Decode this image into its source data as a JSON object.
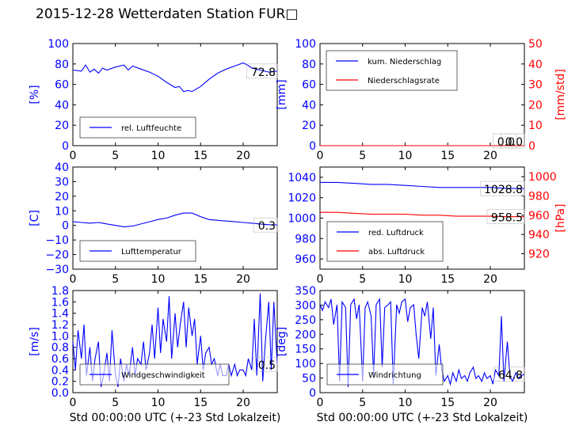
{
  "title": "2015-12-28 Wetterdaten Station FUR□",
  "colors": {
    "primary": "#0000ff",
    "secondary": "#ff0000",
    "axis": "#000000"
  },
  "chart_data": [
    {
      "id": "humidity",
      "type": "line",
      "xlim": [
        0,
        24
      ],
      "xticks": [
        "0",
        "5",
        "10",
        "15",
        "20"
      ],
      "ylim": [
        0,
        100
      ],
      "yticks": [
        "0",
        "20",
        "40",
        "60",
        "80",
        "100"
      ],
      "ylabel": "[%]",
      "xlabel": "",
      "value_label": "72.8",
      "legend": [
        "rel. Luftfeuchte"
      ],
      "legend_position": "lower-left",
      "series": [
        {
          "name": "rel. Luftfeuchte",
          "color": "#0000ff",
          "x": [
            0,
            1,
            1.5,
            2,
            2.5,
            3,
            3.5,
            4,
            5,
            6,
            6.5,
            7,
            8,
            9,
            10,
            11,
            12,
            12.5,
            13,
            13.5,
            14,
            15,
            16,
            17,
            18,
            19,
            20,
            20.5,
            21,
            22,
            23,
            24
          ],
          "y": [
            74,
            73,
            79,
            72,
            75,
            71,
            76,
            74,
            77,
            79,
            74,
            78,
            75,
            72,
            68,
            62,
            57,
            58,
            53,
            54,
            53,
            58,
            65,
            71,
            75,
            78,
            81,
            79,
            76,
            74,
            72,
            73
          ]
        }
      ]
    },
    {
      "id": "precipitation",
      "type": "line",
      "xlim": [
        0,
        24
      ],
      "xticks": [
        "0",
        "5",
        "10",
        "15",
        "20"
      ],
      "ylim": [
        0,
        100
      ],
      "yticks": [
        "0",
        "20",
        "40",
        "60",
        "80",
        "100"
      ],
      "ylabel": "[mm]",
      "xlabel": "",
      "ylim_right": [
        0,
        50
      ],
      "yticks_right": [
        "0",
        "10",
        "20",
        "30",
        "40",
        "50"
      ],
      "ylabel_right": "[mm/std]",
      "value_labels": [
        "0.0",
        "0.0"
      ],
      "legend": [
        "kum. Niederschlag",
        "Niederschlagsrate"
      ],
      "legend_position": "upper-left",
      "series": [
        {
          "name": "kum. Niederschlag",
          "color": "#0000ff",
          "axis": "left",
          "x": [
            0,
            24
          ],
          "y": [
            0,
            0
          ]
        },
        {
          "name": "Niederschlagsrate",
          "color": "#ff0000",
          "axis": "right",
          "x": [
            0,
            24
          ],
          "y": [
            0,
            0
          ]
        }
      ]
    },
    {
      "id": "temperature",
      "type": "line",
      "xlim": [
        0,
        24
      ],
      "xticks": [
        "0",
        "5",
        "10",
        "15",
        "20"
      ],
      "ylim": [
        -30,
        40
      ],
      "yticks": [
        "−30",
        "−20",
        "−10",
        "0",
        "10",
        "20",
        "30",
        "40"
      ],
      "ylabel": "[C]",
      "xlabel": "",
      "value_label": "0.3",
      "legend": [
        "Lufttemperatur"
      ],
      "legend_position": "lower-left",
      "series": [
        {
          "name": "Lufttemperatur",
          "color": "#0000ff",
          "x": [
            0,
            1,
            2,
            3,
            4,
            5,
            6,
            7,
            8,
            9,
            10,
            11,
            12,
            13,
            14,
            15,
            16,
            17,
            18,
            19,
            20,
            21,
            22,
            23,
            24
          ],
          "y": [
            2.5,
            2,
            1.5,
            2,
            1,
            0,
            -1,
            -0.5,
            1,
            2.5,
            4,
            5,
            7,
            8.5,
            8.5,
            6,
            4,
            3.5,
            3,
            2.5,
            2,
            1.5,
            1,
            0.5,
            0.3
          ]
        }
      ]
    },
    {
      "id": "pressure",
      "type": "line",
      "xlim": [
        0,
        24
      ],
      "xticks": [
        "0",
        "5",
        "10",
        "15",
        "20"
      ],
      "ylim": [
        950,
        1050
      ],
      "yticks": [
        "960",
        "980",
        "1000",
        "1020",
        "1040"
      ],
      "ylabel": "",
      "xlabel": "",
      "ylim_right": [
        904,
        1010
      ],
      "yticks_right": [
        "920",
        "940",
        "960",
        "980",
        "1000"
      ],
      "ylabel_right": "[hPa]",
      "value_labels": [
        "1028.8",
        "958.5"
      ],
      "legend": [
        "red. Luftdruck",
        "abs. Luftdruck"
      ],
      "legend_position": "lower-left",
      "series": [
        {
          "name": "red. Luftdruck",
          "color": "#0000ff",
          "axis": "left",
          "x": [
            0,
            2,
            4,
            6,
            8,
            10,
            12,
            14,
            16,
            18,
            20,
            22,
            24
          ],
          "y": [
            1035,
            1035,
            1034,
            1033,
            1033,
            1032,
            1031,
            1030,
            1030,
            1030,
            1030,
            1029,
            1029
          ]
        },
        {
          "name": "abs. Luftdruck",
          "color": "#ff0000",
          "axis": "right",
          "x": [
            0,
            2,
            4,
            6,
            8,
            10,
            12,
            14,
            16,
            18,
            20,
            22,
            24
          ],
          "y": [
            963,
            963,
            962,
            961,
            961,
            961,
            960,
            960,
            959,
            959,
            959,
            958.5,
            958.5
          ]
        }
      ]
    },
    {
      "id": "windspeed",
      "type": "line",
      "xlim": [
        0,
        24
      ],
      "xticks": [
        "0",
        "5",
        "10",
        "15",
        "20"
      ],
      "ylim": [
        0,
        1.8
      ],
      "yticks": [
        "0.0",
        "0.2",
        "0.4",
        "0.6",
        "0.8",
        "1.0",
        "1.2",
        "1.4",
        "1.6",
        "1.8"
      ],
      "ylabel": "[m/s]",
      "xlabel": "Std 00:00:00 UTC (+-23 Std Lokalzeit)",
      "value_label": "0.5",
      "legend": [
        "Windgeschwindigkeit"
      ],
      "legend_position": "lower-center",
      "series": [
        {
          "name": "Windgeschwindigkeit",
          "color": "#0000ff",
          "x": [
            0,
            0.3,
            0.6,
            1,
            1.3,
            1.6,
            2,
            2.3,
            2.6,
            3,
            3.3,
            3.6,
            4,
            4.3,
            4.6,
            5,
            5.3,
            5.6,
            6,
            6.3,
            6.6,
            7,
            7.3,
            7.6,
            8,
            8.3,
            8.6,
            9,
            9.3,
            9.6,
            10,
            10.3,
            10.6,
            11,
            11.3,
            11.6,
            12,
            12.3,
            12.6,
            13,
            13.3,
            13.6,
            14,
            14.3,
            14.6,
            15,
            15.3,
            15.6,
            16,
            16.3,
            16.6,
            17,
            17.3,
            17.6,
            18,
            18.3,
            18.6,
            19,
            19.3,
            19.6,
            20,
            20.3,
            20.6,
            21,
            21.3,
            21.6,
            22,
            22.3,
            22.6,
            23,
            23.3,
            23.6,
            24
          ],
          "y": [
            0.9,
            0.4,
            1.1,
            0.6,
            1.2,
            0.3,
            0.8,
            0.2,
            0.6,
            0.9,
            0.1,
            0.3,
            0.7,
            0.2,
            1.1,
            0.3,
            0.1,
            0.6,
            0.2,
            0.5,
            0.3,
            0.8,
            0.3,
            0.6,
            0.5,
            0.9,
            0.4,
            0.7,
            1.2,
            0.6,
            1.5,
            0.7,
            1.3,
            0.9,
            1.7,
            0.6,
            1.4,
            0.8,
            1.2,
            1.6,
            0.8,
            1.5,
            1.0,
            1.3,
            0.5,
            1.0,
            0.4,
            0.7,
            0.8,
            0.5,
            0.6,
            0.3,
            0.5,
            0.3,
            0.3,
            0.5,
            0.3,
            0.5,
            0.3,
            0.4,
            0.4,
            0.3,
            0.6,
            0.4,
            1.3,
            0.3,
            1.75,
            0.2,
            0.9,
            1.6,
            0.4,
            1.6,
            0.5
          ]
        }
      ]
    },
    {
      "id": "winddirection",
      "type": "line",
      "xlim": [
        0,
        24
      ],
      "xticks": [
        "0",
        "5",
        "10",
        "15",
        "20"
      ],
      "ylim": [
        0,
        360
      ],
      "yticks": [
        "0",
        "50",
        "100",
        "150",
        "200",
        "250",
        "300",
        "350"
      ],
      "ylabel": "[deg]",
      "xlabel": "Std 00:00:00 UTC (+-23 Std Lokalzeit)",
      "value_label": "64.8",
      "legend": [
        "Windrichtung"
      ],
      "legend_position": "lower-left",
      "series": [
        {
          "name": "Windrichtung",
          "color": "#0000ff",
          "x": [
            0,
            0.3,
            0.6,
            1,
            1.3,
            1.6,
            2,
            2.3,
            2.6,
            3,
            3.3,
            3.6,
            4,
            4.3,
            4.6,
            5,
            5.3,
            5.6,
            6,
            6.3,
            6.6,
            7,
            7.3,
            7.6,
            8,
            8.3,
            8.6,
            9,
            9.3,
            9.6,
            10,
            10.3,
            10.6,
            11,
            11.3,
            11.6,
            12,
            12.3,
            12.6,
            13,
            13.3,
            13.6,
            14,
            14.3,
            14.6,
            15,
            15.3,
            15.6,
            16,
            16.3,
            16.6,
            17,
            17.3,
            17.6,
            18,
            18.3,
            18.6,
            19,
            19.3,
            19.6,
            20,
            20.3,
            20.6,
            21,
            21.3,
            21.6,
            22,
            22.3,
            22.6,
            23,
            23.3,
            23.6,
            24
          ],
          "y": [
            310,
            290,
            320,
            300,
            330,
            240,
            310,
            40,
            320,
            300,
            20,
            310,
            330,
            260,
            310,
            40,
            300,
            320,
            270,
            60,
            310,
            330,
            90,
            300,
            310,
            320,
            30,
            310,
            280,
            320,
            330,
            250,
            300,
            310,
            200,
            120,
            300,
            270,
            320,
            190,
            300,
            60,
            170,
            80,
            40,
            60,
            30,
            70,
            40,
            80,
            50,
            60,
            40,
            70,
            90,
            50,
            60,
            40,
            70,
            50,
            60,
            30,
            80,
            60,
            270,
            40,
            180,
            60,
            40,
            70,
            50,
            60,
            65
          ]
        }
      ]
    }
  ]
}
